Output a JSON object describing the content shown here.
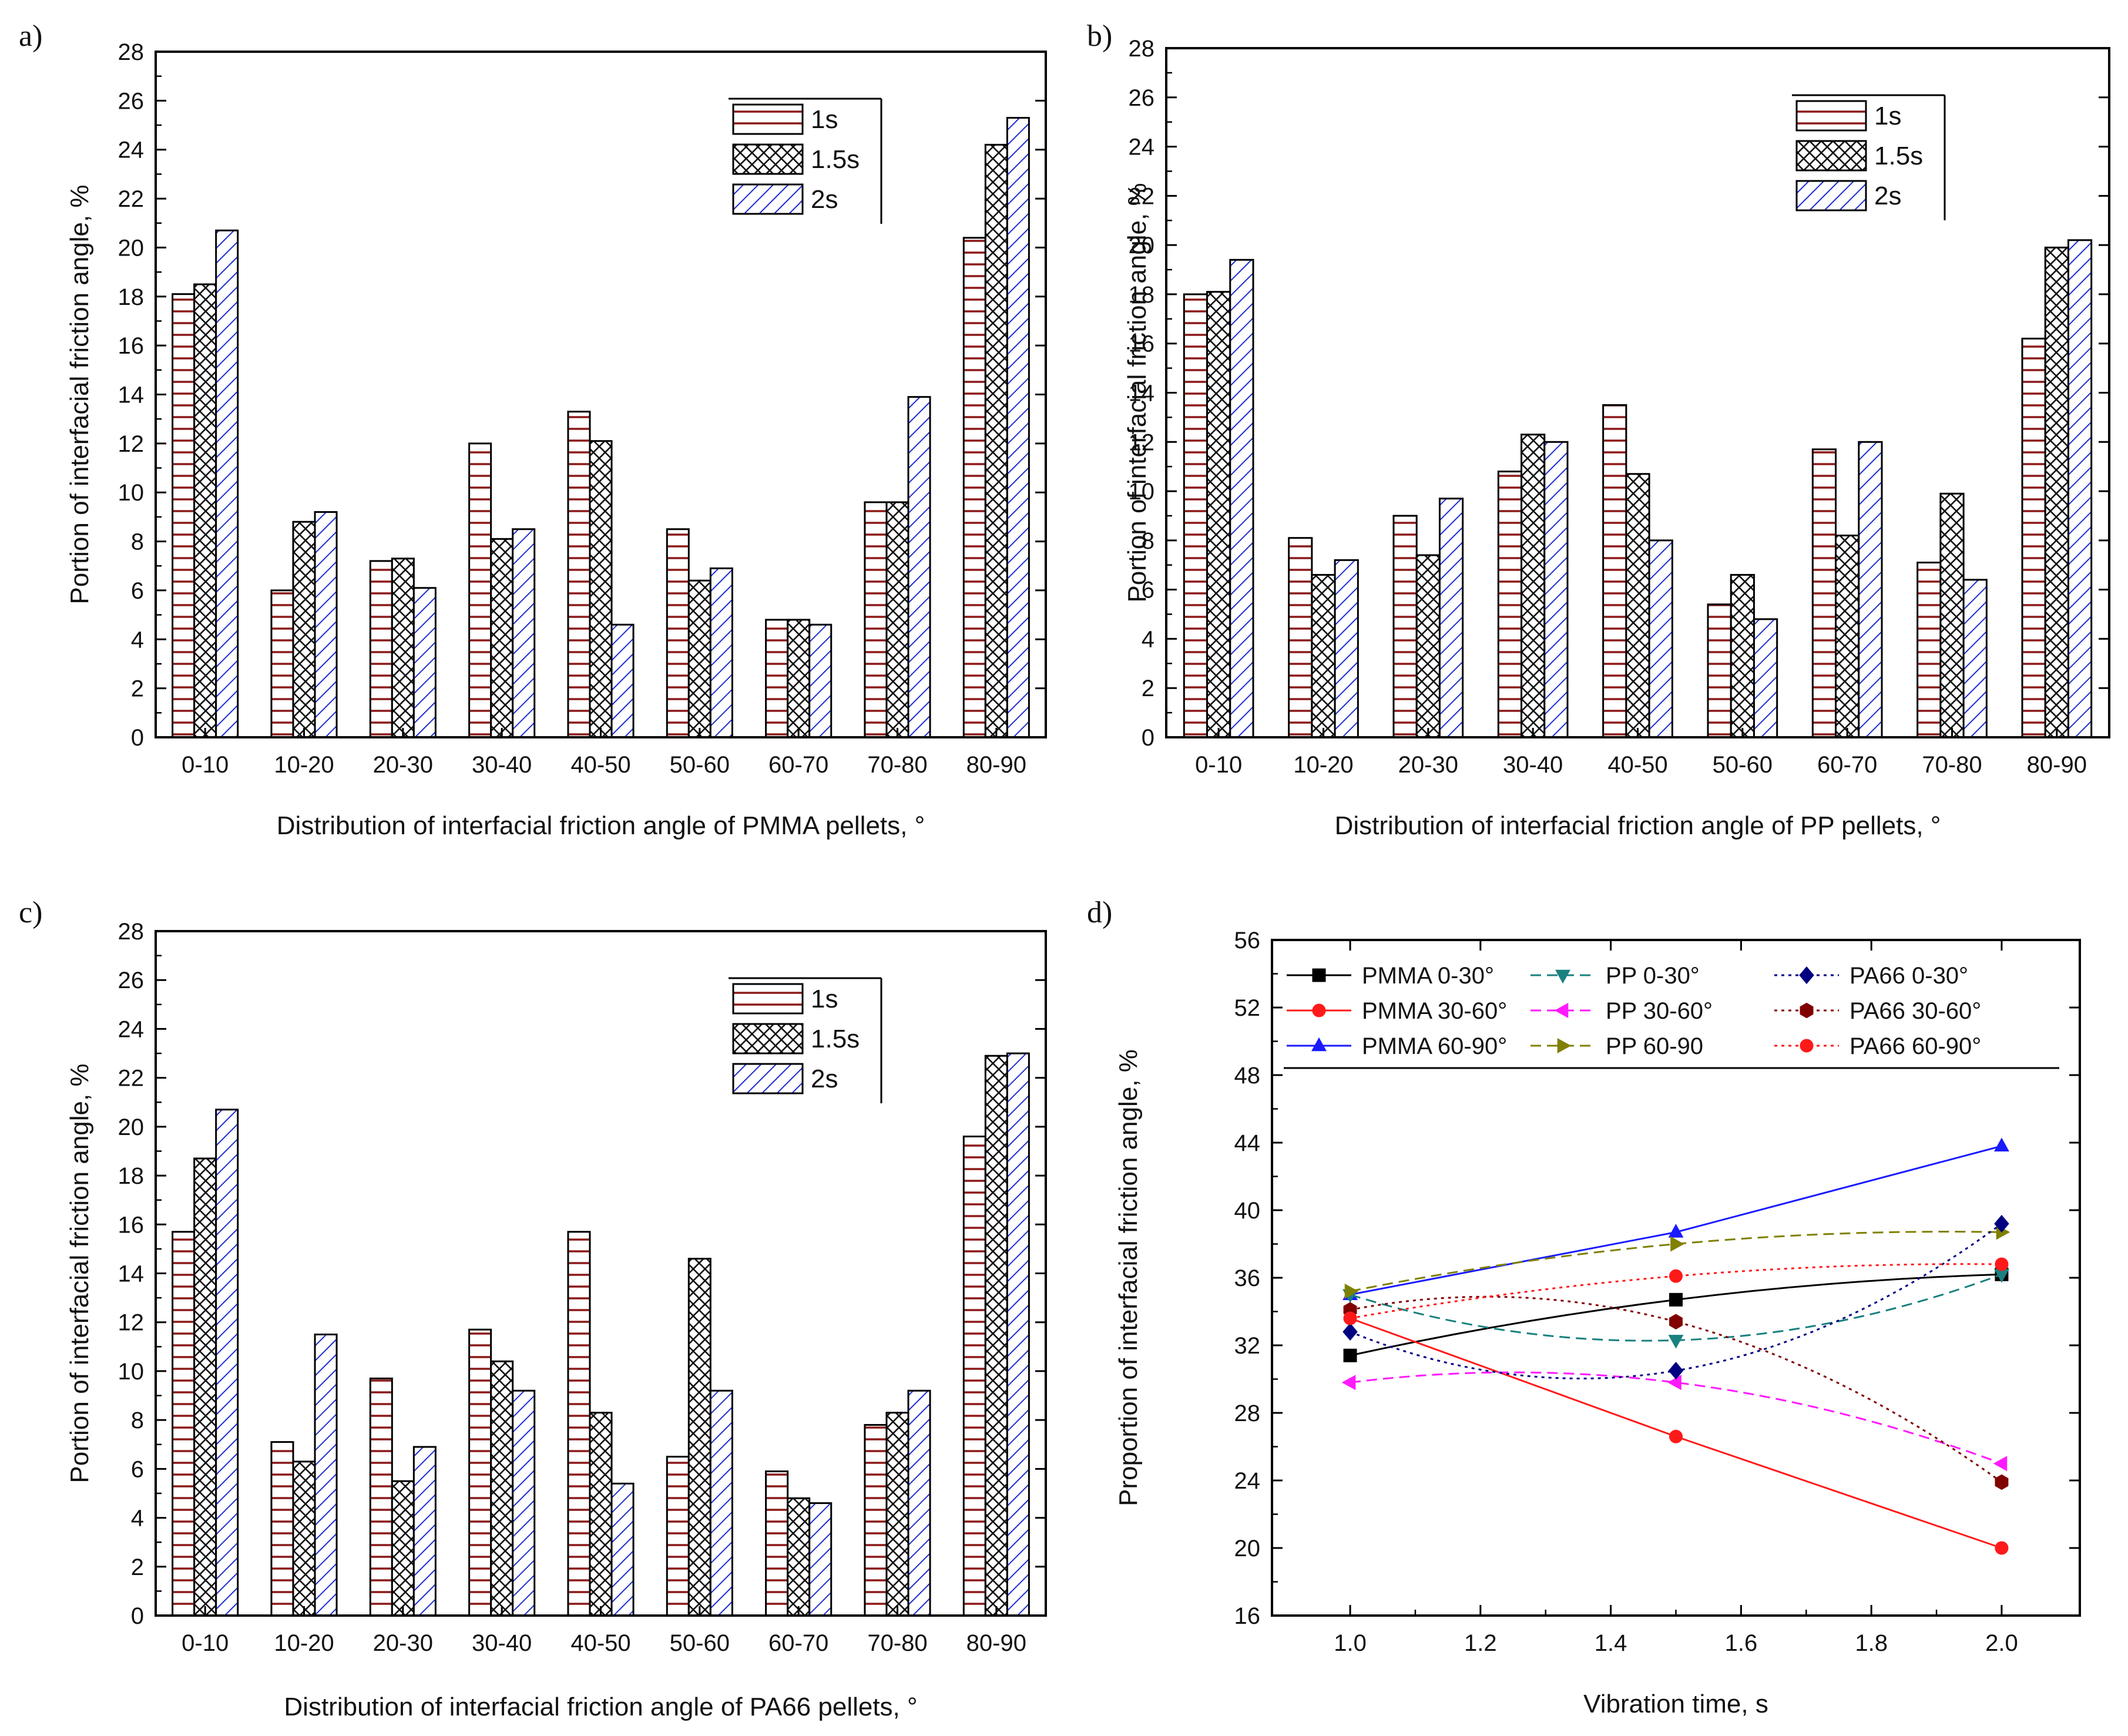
{
  "colors": {
    "s1": "#8b1a1a",
    "s15": "#111111",
    "s2": "#1f2fd0",
    "axis": "#000000"
  },
  "chart_data": [
    {
      "panel": "a)",
      "type": "bar",
      "title": "",
      "xlabel": "Distribution of interfacial friction angle of PMMA pellets, °",
      "ylabel": "Portion of interfacial friction angle, %",
      "ylim": [
        0,
        28
      ],
      "yticks": [
        "0",
        "2",
        "4",
        "6",
        "8",
        "10",
        "12",
        "14",
        "16",
        "18",
        "20",
        "22",
        "24",
        "26",
        "28"
      ],
      "categories": [
        "0-10",
        "10-20",
        "20-30",
        "30-40",
        "40-50",
        "50-60",
        "60-70",
        "70-80",
        "80-90"
      ],
      "legend": {
        "position": "top-right",
        "labels": [
          "1s",
          "1.5s",
          "2s"
        ]
      },
      "series": [
        {
          "name": "1s",
          "values": [
            18.1,
            6.0,
            7.2,
            12.0,
            13.3,
            8.5,
            4.8,
            9.6,
            20.4
          ],
          "hatch": "h"
        },
        {
          "name": "1.5s",
          "values": [
            18.5,
            8.8,
            7.3,
            8.1,
            12.1,
            6.4,
            4.8,
            9.6,
            24.2
          ],
          "hatch": "x"
        },
        {
          "name": "2s",
          "values": [
            20.7,
            9.2,
            6.1,
            8.5,
            4.6,
            6.9,
            4.6,
            13.9,
            25.3
          ],
          "hatch": "d"
        }
      ]
    },
    {
      "panel": "b)",
      "type": "bar",
      "title": "",
      "xlabel": "Distribution of interfacial friction angle of PP pellets, °",
      "ylabel": "Portion of interfacial friction angle, %",
      "ylim": [
        0,
        28
      ],
      "yticks": [
        "0",
        "2",
        "4",
        "6",
        "8",
        "10",
        "12",
        "14",
        "16",
        "18",
        "20",
        "22",
        "24",
        "26",
        "28"
      ],
      "categories": [
        "0-10",
        "10-20",
        "20-30",
        "30-40",
        "40-50",
        "50-60",
        "60-70",
        "70-80",
        "80-90"
      ],
      "legend": {
        "position": "top-right",
        "labels": [
          "1s",
          "1.5s",
          "2s"
        ]
      },
      "series": [
        {
          "name": "1s",
          "values": [
            18.0,
            8.1,
            9.0,
            10.8,
            13.5,
            5.4,
            11.7,
            7.1,
            16.2
          ],
          "hatch": "h"
        },
        {
          "name": "1.5s",
          "values": [
            18.1,
            6.6,
            7.4,
            12.3,
            10.7,
            6.6,
            8.2,
            9.9,
            19.9
          ],
          "hatch": "x"
        },
        {
          "name": "2s",
          "values": [
            19.4,
            7.2,
            9.7,
            12.0,
            8.0,
            4.8,
            12.0,
            6.4,
            20.2
          ],
          "hatch": "d"
        }
      ]
    },
    {
      "panel": "c)",
      "type": "bar",
      "title": "",
      "xlabel": "Distribution of interfacial friction angle of PA66 pellets, °",
      "ylabel": "Portion of interfacial friction angle, %",
      "ylim": [
        0,
        28
      ],
      "yticks": [
        "0",
        "2",
        "4",
        "6",
        "8",
        "10",
        "12",
        "14",
        "16",
        "18",
        "20",
        "22",
        "24",
        "26",
        "28"
      ],
      "categories": [
        "0-10",
        "10-20",
        "20-30",
        "30-40",
        "40-50",
        "50-60",
        "60-70",
        "70-80",
        "80-90"
      ],
      "legend": {
        "position": "top-right",
        "labels": [
          "1s",
          "1.5s",
          "2s"
        ]
      },
      "series": [
        {
          "name": "1s",
          "values": [
            15.7,
            7.1,
            9.7,
            11.7,
            15.7,
            6.5,
            5.9,
            7.8,
            19.6
          ],
          "hatch": "h"
        },
        {
          "name": "1.5s",
          "values": [
            18.7,
            6.3,
            5.5,
            10.4,
            8.3,
            14.6,
            4.8,
            8.3,
            22.9
          ],
          "hatch": "x"
        },
        {
          "name": "2s",
          "values": [
            20.7,
            11.5,
            6.9,
            9.2,
            5.4,
            9.2,
            4.6,
            9.2,
            23.0
          ],
          "hatch": "d"
        }
      ]
    },
    {
      "panel": "d)",
      "type": "line",
      "title": "",
      "xlabel": "Vibration time, s",
      "ylabel": "Proportion of interfacial friction angle, %",
      "xlim": [
        0.88,
        2.12
      ],
      "ylim": [
        16,
        56
      ],
      "xticks": [
        "1.0",
        "1.2",
        "1.4",
        "1.6",
        "1.8",
        "2.0"
      ],
      "yticks": [
        "16",
        "20",
        "24",
        "28",
        "32",
        "36",
        "40",
        "44",
        "48",
        "52",
        "56"
      ],
      "x": [
        1.0,
        1.5,
        2.0
      ],
      "legend_position": "top",
      "series": [
        {
          "name": "PMMA  0-30°",
          "values": [
            31.4,
            34.7,
            36.2
          ],
          "color": "#000000",
          "dash": "solid",
          "marker": "square",
          "curve": true
        },
        {
          "name": "PMMA  30-60°",
          "values": [
            33.6,
            26.6,
            20.0
          ],
          "color": "#ff1a1a",
          "dash": "solid",
          "marker": "circle",
          "curve": false
        },
        {
          "name": "PMMA  60-90°",
          "values": [
            35.0,
            38.7,
            43.8
          ],
          "color": "#1a1aff",
          "dash": "solid",
          "marker": "triangle-up",
          "curve": false
        },
        {
          "name": "PP  0-30°",
          "values": [
            35.0,
            32.3,
            36.2
          ],
          "color": "#1a8080",
          "dash": "dash",
          "marker": "triangle-down",
          "curve": true
        },
        {
          "name": "PP  30-60°",
          "values": [
            29.8,
            29.8,
            25.0
          ],
          "color": "#ff1aff",
          "dash": "dash",
          "marker": "triangle-left",
          "curve": true
        },
        {
          "name": "PP  60-90",
          "values": [
            35.2,
            38.0,
            38.7
          ],
          "color": "#808000",
          "dash": "dash",
          "marker": "triangle-right",
          "curve": true
        },
        {
          "name": "PA66  0-30°",
          "values": [
            32.8,
            30.5,
            39.2
          ],
          "color": "#000080",
          "dash": "dot",
          "marker": "diamond",
          "curve": true
        },
        {
          "name": "PA66  30-60°",
          "values": [
            34.1,
            33.4,
            23.9
          ],
          "color": "#800000",
          "dash": "dot",
          "marker": "hexagon",
          "curve": true
        },
        {
          "name": "PA66  60-90°",
          "values": [
            33.6,
            36.1,
            36.8
          ],
          "color": "#ff1a1a",
          "dash": "dot",
          "marker": "circle",
          "curve": true
        }
      ]
    }
  ]
}
